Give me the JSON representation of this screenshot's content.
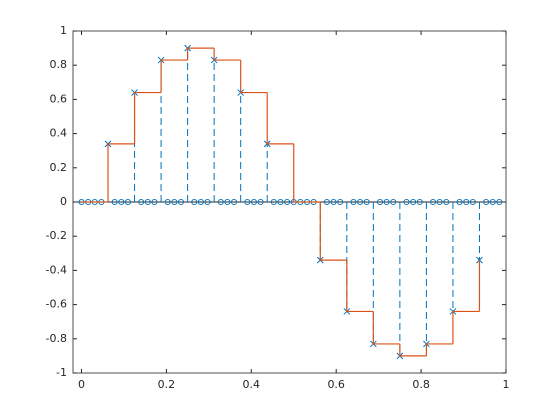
{
  "chart_data": {
    "type": "stem",
    "xlim": [
      -0.02,
      1
    ],
    "ylim": [
      -1,
      1
    ],
    "xticks": [
      0,
      0.2,
      0.4,
      0.6,
      0.8,
      1
    ],
    "yticks": [
      -1,
      -0.8,
      -0.6,
      -0.4,
      -0.2,
      0,
      0.2,
      0.4,
      0.6,
      0.8,
      1
    ],
    "series": [
      {
        "type": "stem",
        "color": "#0072BD",
        "x": [
          0,
          0.015625,
          0.03125,
          0.046875,
          0.0625,
          0.078125,
          0.09375,
          0.109375,
          0.125,
          0.140625,
          0.15625,
          0.171875,
          0.1875,
          0.203125,
          0.21875,
          0.234375,
          0.25,
          0.265625,
          0.28125,
          0.296875,
          0.3125,
          0.328125,
          0.34375,
          0.359375,
          0.375,
          0.390625,
          0.40625,
          0.421875,
          0.4375,
          0.453125,
          0.46875,
          0.484375,
          0.5,
          0.515625,
          0.53125,
          0.546875,
          0.5625,
          0.578125,
          0.59375,
          0.609375,
          0.625,
          0.640625,
          0.65625,
          0.671875,
          0.6875,
          0.703125,
          0.71875,
          0.734375,
          0.75,
          0.765625,
          0.78125,
          0.796875,
          0.8125,
          0.828125,
          0.84375,
          0.859375,
          0.875,
          0.890625,
          0.90625,
          0.921875,
          0.9375,
          0.953125,
          0.96875,
          0.984375
        ],
        "values": [
          0,
          0,
          0,
          0,
          0.34,
          0,
          0,
          0,
          0.64,
          0,
          0,
          0,
          0.83,
          0,
          0,
          0,
          0.9,
          0,
          0,
          0,
          0.83,
          0,
          0,
          0,
          0.64,
          0,
          0,
          0,
          0.34,
          0,
          0,
          0,
          0,
          0,
          0,
          0,
          -0.34,
          0,
          0,
          0,
          -0.64,
          0,
          0,
          0,
          -0.83,
          0,
          0,
          0,
          -0.9,
          0,
          0,
          0,
          -0.83,
          0,
          0,
          0,
          -0.64,
          0,
          0,
          0,
          -0.34,
          0,
          0,
          0
        ]
      },
      {
        "type": "stairs",
        "color": "#D95319",
        "x": [
          0,
          0.0625,
          0.125,
          0.1875,
          0.25,
          0.3125,
          0.375,
          0.4375,
          0.5,
          0.5625,
          0.625,
          0.6875,
          0.75,
          0.8125,
          0.875,
          0.9375
        ],
        "values": [
          0,
          0.34,
          0.64,
          0.83,
          0.9,
          0.83,
          0.64,
          0.34,
          0,
          -0.34,
          -0.64,
          -0.83,
          -0.9,
          -0.83,
          -0.64,
          -0.34
        ]
      }
    ]
  }
}
